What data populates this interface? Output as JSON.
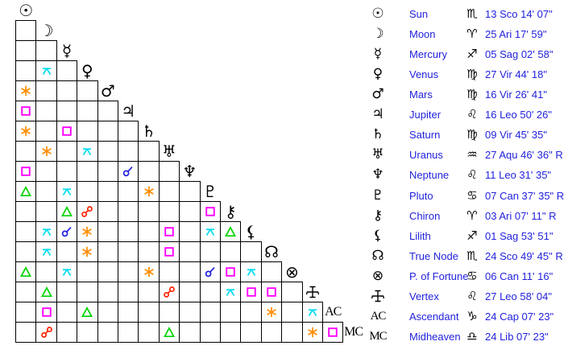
{
  "colors": {
    "text_blue": "#2222dd",
    "glyph_black": "#000000",
    "aspects": {
      "conjunction": "#2222dd",
      "sextile": "#ff8c00",
      "square": "#ff00ff",
      "trine": "#00d400",
      "opposition": "#ff2000",
      "quincunx": "#00dcf0"
    }
  },
  "grid": {
    "planets": [
      {
        "id": "sun",
        "kind": "char",
        "glyph": "☉"
      },
      {
        "id": "moon",
        "kind": "char",
        "glyph": "☽"
      },
      {
        "id": "mercury",
        "kind": "char",
        "glyph": "☿"
      },
      {
        "id": "venus",
        "kind": "char",
        "glyph": "♀"
      },
      {
        "id": "mars",
        "kind": "char",
        "glyph": "♂"
      },
      {
        "id": "jupiter",
        "kind": "char",
        "glyph": "♃"
      },
      {
        "id": "saturn",
        "kind": "char",
        "glyph": "♄"
      },
      {
        "id": "uranus",
        "kind": "char",
        "glyph": "♅"
      },
      {
        "id": "neptune",
        "kind": "char",
        "glyph": "♆"
      },
      {
        "id": "pluto",
        "kind": "char",
        "glyph": "♇"
      },
      {
        "id": "chiron",
        "kind": "char",
        "glyph": "⚷"
      },
      {
        "id": "lilith",
        "kind": "char",
        "glyph": "⚸"
      },
      {
        "id": "true-node",
        "kind": "char",
        "glyph": "☊"
      },
      {
        "id": "fortune",
        "kind": "char",
        "glyph": "⊗"
      },
      {
        "id": "vertex",
        "kind": "svg-vertex",
        "glyph": ""
      },
      {
        "id": "ac",
        "kind": "text",
        "glyph": "AC"
      },
      {
        "id": "mc",
        "kind": "text",
        "glyph": "MC"
      }
    ],
    "aspects": [
      {
        "p1": "venus",
        "p2": "moon",
        "type": "quincunx"
      },
      {
        "p1": "mars",
        "p2": "sun",
        "type": "sextile"
      },
      {
        "p1": "jupiter",
        "p2": "sun",
        "type": "square"
      },
      {
        "p1": "saturn",
        "p2": "sun",
        "type": "sextile"
      },
      {
        "p1": "saturn",
        "p2": "mercury",
        "type": "square"
      },
      {
        "p1": "uranus",
        "p2": "moon",
        "type": "sextile"
      },
      {
        "p1": "uranus",
        "p2": "venus",
        "type": "quincunx"
      },
      {
        "p1": "neptune",
        "p2": "sun",
        "type": "square"
      },
      {
        "p1": "neptune",
        "p2": "jupiter",
        "type": "conjunction"
      },
      {
        "p1": "pluto",
        "p2": "sun",
        "type": "trine"
      },
      {
        "p1": "pluto",
        "p2": "mercury",
        "type": "quincunx"
      },
      {
        "p1": "pluto",
        "p2": "saturn",
        "type": "sextile"
      },
      {
        "p1": "chiron",
        "p2": "mercury",
        "type": "trine"
      },
      {
        "p1": "chiron",
        "p2": "venus",
        "type": "opposition"
      },
      {
        "p1": "chiron",
        "p2": "pluto",
        "type": "square"
      },
      {
        "p1": "lilith",
        "p2": "moon",
        "type": "quincunx"
      },
      {
        "p1": "lilith",
        "p2": "mercury",
        "type": "conjunction"
      },
      {
        "p1": "lilith",
        "p2": "venus",
        "type": "sextile"
      },
      {
        "p1": "lilith",
        "p2": "uranus",
        "type": "square"
      },
      {
        "p1": "lilith",
        "p2": "pluto",
        "type": "quincunx"
      },
      {
        "p1": "lilith",
        "p2": "chiron",
        "type": "trine"
      },
      {
        "p1": "true-node",
        "p2": "moon",
        "type": "quincunx"
      },
      {
        "p1": "true-node",
        "p2": "venus",
        "type": "sextile"
      },
      {
        "p1": "true-node",
        "p2": "uranus",
        "type": "square"
      },
      {
        "p1": "fortune",
        "p2": "sun",
        "type": "trine"
      },
      {
        "p1": "fortune",
        "p2": "mercury",
        "type": "quincunx"
      },
      {
        "p1": "fortune",
        "p2": "saturn",
        "type": "sextile"
      },
      {
        "p1": "fortune",
        "p2": "pluto",
        "type": "conjunction"
      },
      {
        "p1": "fortune",
        "p2": "chiron",
        "type": "square"
      },
      {
        "p1": "fortune",
        "p2": "lilith",
        "type": "quincunx"
      },
      {
        "p1": "vertex",
        "p2": "moon",
        "type": "trine"
      },
      {
        "p1": "vertex",
        "p2": "uranus",
        "type": "opposition"
      },
      {
        "p1": "vertex",
        "p2": "chiron",
        "type": "quincunx"
      },
      {
        "p1": "vertex",
        "p2": "lilith",
        "type": "square"
      },
      {
        "p1": "vertex",
        "p2": "true-node",
        "type": "square"
      },
      {
        "p1": "ac",
        "p2": "moon",
        "type": "square"
      },
      {
        "p1": "ac",
        "p2": "venus",
        "type": "trine"
      },
      {
        "p1": "ac",
        "p2": "true-node",
        "type": "sextile"
      },
      {
        "p1": "ac",
        "p2": "vertex",
        "type": "quincunx"
      },
      {
        "p1": "mc",
        "p2": "moon",
        "type": "opposition"
      },
      {
        "p1": "mc",
        "p2": "uranus",
        "type": "trine"
      },
      {
        "p1": "mc",
        "p2": "vertex",
        "type": "sextile"
      },
      {
        "p1": "mc",
        "p2": "ac",
        "type": "square"
      }
    ]
  },
  "table": {
    "rows": [
      {
        "id": "sun",
        "kind": "char",
        "glyph": "☉",
        "name": "Sun",
        "sign": "♏",
        "position": "13 Sco 14' 07\""
      },
      {
        "id": "moon",
        "kind": "char",
        "glyph": "☽",
        "name": "Moon",
        "sign": "♈",
        "position": "25 Ari 17' 59\""
      },
      {
        "id": "mercury",
        "kind": "char",
        "glyph": "☿",
        "name": "Mercury",
        "sign": "♐",
        "position": "05 Sag 02' 58\""
      },
      {
        "id": "venus",
        "kind": "char",
        "glyph": "♀",
        "name": "Venus",
        "sign": "♍",
        "position": "27 Vir 44' 18\""
      },
      {
        "id": "mars",
        "kind": "char",
        "glyph": "♂",
        "name": "Mars",
        "sign": "♍",
        "position": "16 Vir 26' 41\""
      },
      {
        "id": "jupiter",
        "kind": "char",
        "glyph": "♃",
        "name": "Jupiter",
        "sign": "♌",
        "position": "16 Leo 50' 26\""
      },
      {
        "id": "saturn",
        "kind": "char",
        "glyph": "♄",
        "name": "Saturn",
        "sign": "♍",
        "position": "09 Vir 45' 35\""
      },
      {
        "id": "uranus",
        "kind": "char",
        "glyph": "♅",
        "name": "Uranus",
        "sign": "♒",
        "position": "27 Aqu 46' 36\" R"
      },
      {
        "id": "neptune",
        "kind": "char",
        "glyph": "♆",
        "name": "Neptune",
        "sign": "♌",
        "position": "11 Leo 31' 35\""
      },
      {
        "id": "pluto",
        "kind": "char",
        "glyph": "♇",
        "name": "Pluto",
        "sign": "♋",
        "position": "07 Can 37' 35\" R"
      },
      {
        "id": "chiron",
        "kind": "char",
        "glyph": "⚷",
        "name": "Chiron",
        "sign": "♈",
        "position": "03 Ari 07' 11\" R"
      },
      {
        "id": "lilith",
        "kind": "char",
        "glyph": "⚸",
        "name": "Lilith",
        "sign": "♐",
        "position": "01 Sag 53' 51\""
      },
      {
        "id": "true-node",
        "kind": "char",
        "glyph": "☊",
        "name": "True Node",
        "sign": "♏",
        "position": "24 Sco 49' 45\" R"
      },
      {
        "id": "fortune",
        "kind": "char",
        "glyph": "⊗",
        "name": "P. of Fortune",
        "sign": "♋",
        "position": "06 Can 11' 16\""
      },
      {
        "id": "vertex",
        "kind": "svg-vertex",
        "glyph": "",
        "name": "Vertex",
        "sign": "♌",
        "position": "27 Leo 58' 04\""
      },
      {
        "id": "ac",
        "kind": "text",
        "glyph": "AC",
        "name": "Ascendant",
        "sign": "♑",
        "position": "24 Cap 07' 23\""
      },
      {
        "id": "mc",
        "kind": "text",
        "glyph": "MC",
        "name": "Midheaven",
        "sign": "♎",
        "position": "24 Lib 07' 23\""
      }
    ]
  }
}
